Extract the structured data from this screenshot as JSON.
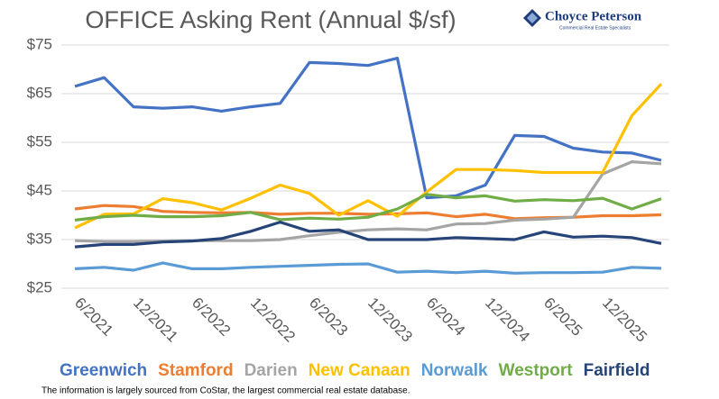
{
  "chart_data": {
    "type": "line",
    "title": "OFFICE Asking Rent (Annual $/sf)",
    "logo": {
      "name": "Choyce Peterson",
      "tagline": "Commercial Real Estate Specialists"
    },
    "footnote": "The information is largely sourced from CoStar, the largest commercial real estate database.",
    "categories": [
      "6/2021",
      null,
      "12/2021",
      null,
      "6/2022",
      null,
      "12/2022",
      null,
      "6/2023",
      null,
      "12/2023",
      null,
      "6/2024",
      null,
      "12/2024",
      null,
      "6/2025",
      null,
      "12/2025",
      null,
      null
    ],
    "ylim": [
      25,
      75
    ],
    "yticks": [
      {
        "value": 25,
        "label": "$25"
      },
      {
        "value": 35,
        "label": "$35"
      },
      {
        "value": 45,
        "label": "$45"
      },
      {
        "value": 55,
        "label": "$55"
      },
      {
        "value": 65,
        "label": "$65"
      },
      {
        "value": 75,
        "label": "$75"
      }
    ],
    "grid": true,
    "legend": "bottom",
    "series": [
      {
        "name": "Greenwich",
        "color": "#4472c4",
        "values": [
          66.5,
          68.3,
          62.3,
          62,
          62.3,
          61.4,
          62.3,
          63,
          71.4,
          71.2,
          70.8,
          72.3,
          43.6,
          44,
          46.2,
          56.4,
          56.2,
          53.8,
          53,
          52.8,
          51.3
        ]
      },
      {
        "name": "Stamford",
        "color": "#ed7d31",
        "values": [
          41.3,
          42,
          41.8,
          40.8,
          40.6,
          40.5,
          40.6,
          40.2,
          40.4,
          40.4,
          40.2,
          40.3,
          40.5,
          39.7,
          40.2,
          39.3,
          39.5,
          39.6,
          39.9,
          39.9,
          40.1
        ]
      },
      {
        "name": "Darien",
        "color": "#a5a5a5",
        "values": [
          34.8,
          34.6,
          34.6,
          34.7,
          34.8,
          34.8,
          34.8,
          35,
          35.8,
          36.5,
          37,
          37.2,
          37,
          38.2,
          38.3,
          39,
          39.2,
          39.6,
          48.5,
          51,
          50.6
        ]
      },
      {
        "name": "New Canaan",
        "color": "#ffc000",
        "values": [
          37.4,
          40.2,
          40.3,
          43.4,
          42.6,
          41.1,
          43.5,
          46.2,
          44.5,
          40,
          43,
          39.8,
          44.8,
          49.4,
          49.4,
          49.2,
          48.8,
          48.8,
          48.8,
          60.5,
          67
        ]
      },
      {
        "name": "Norwalk",
        "color": "#5b9bd5",
        "values": [
          29,
          29.3,
          28.7,
          30.2,
          29,
          29,
          29.3,
          29.5,
          29.7,
          29.9,
          30,
          28.3,
          28.5,
          28.2,
          28.5,
          28.1,
          28.2,
          28.2,
          28.3,
          29.3,
          29.1
        ]
      },
      {
        "name": "Westport",
        "color": "#70ad47",
        "values": [
          39,
          39.7,
          40,
          39.7,
          39.7,
          39.9,
          40.6,
          39.1,
          39.4,
          39.2,
          39.6,
          41.3,
          44.3,
          43.6,
          44,
          42.9,
          43.2,
          43,
          43.5,
          41.3,
          43.4
        ]
      },
      {
        "name": "Fairfield",
        "color": "#264478",
        "values": [
          33.5,
          34,
          34,
          34.5,
          34.7,
          35.2,
          36.7,
          38.6,
          36.7,
          37,
          35,
          35,
          35,
          35.4,
          35.2,
          35,
          36.6,
          35.5,
          35.7,
          35.4,
          34.2
        ]
      }
    ]
  }
}
